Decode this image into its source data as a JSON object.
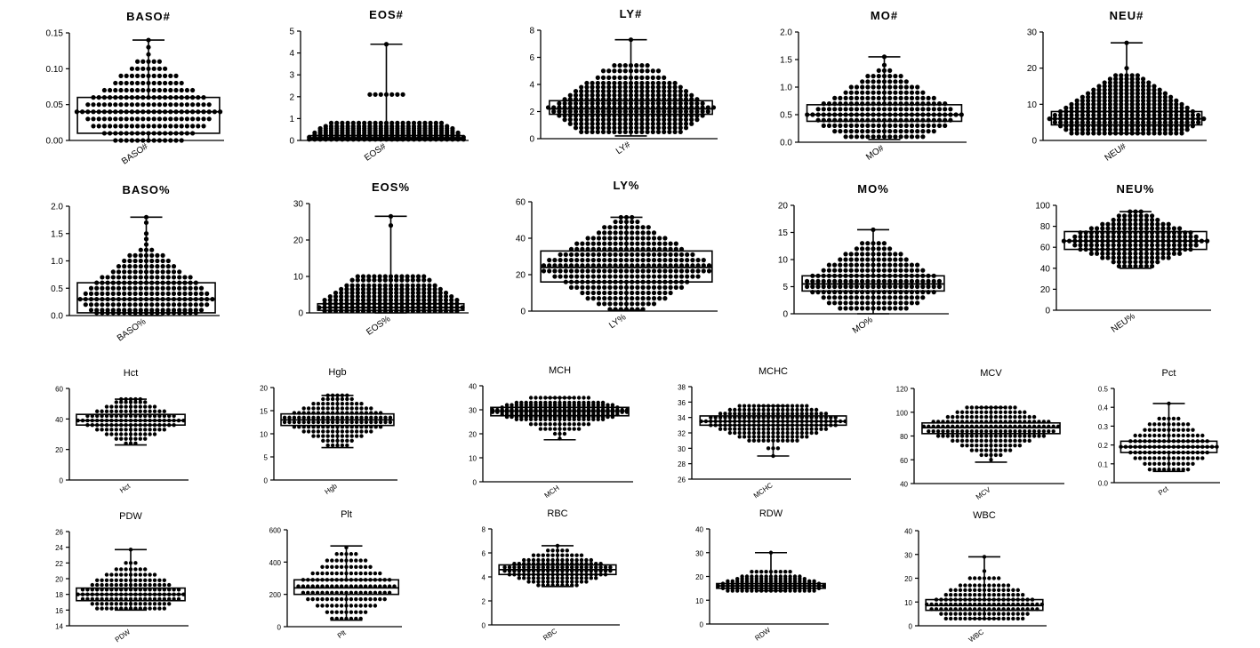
{
  "chart_data": [
    {
      "type": "box_dot",
      "title": "BASO#",
      "category": "BASO#",
      "ylim": [
        0,
        0.15
      ],
      "yticks": [
        "0.00",
        "0.05",
        "0.10",
        "0.15"
      ],
      "yticks_v": [
        0,
        0.05,
        0.1,
        0.15
      ],
      "min": 0,
      "q1": 0.01,
      "median": 0.04,
      "q3": 0.06,
      "max": 0.14,
      "levels": [
        0,
        0.01,
        0.02,
        0.03,
        0.04,
        0.05,
        0.06,
        0.07,
        0.08,
        0.09,
        0.1,
        0.11,
        0.12,
        0.13,
        0.14
      ]
    },
    {
      "type": "box_dot",
      "title": "EOS#",
      "category": "EOS#",
      "ylim": [
        0,
        5
      ],
      "yticks": [
        "0",
        "1",
        "2",
        "3",
        "4",
        "5"
      ],
      "yticks_v": [
        0,
        1,
        2,
        3,
        4,
        5
      ],
      "min": 0,
      "q1": 0.05,
      "median": 0.12,
      "q3": 0.22,
      "max": 4.4,
      "levels": [
        0.05,
        0.15,
        0.25,
        0.35,
        0.45,
        0.55,
        0.65,
        0.8,
        2.1,
        4.4
      ]
    },
    {
      "type": "box_dot",
      "title": "LY#",
      "category": "LY#",
      "ylim": [
        0,
        8
      ],
      "yticks": [
        "0",
        "2",
        "4",
        "6",
        "8"
      ],
      "yticks_v": [
        0,
        2,
        4,
        6,
        8
      ],
      "min": 0.2,
      "q1": 1.8,
      "median": 2.2,
      "q3": 2.8,
      "max": 7.3,
      "levels": [
        0.5,
        0.8,
        1.1,
        1.4,
        1.7,
        2.0,
        2.3,
        2.6,
        2.9,
        3.2,
        3.5,
        3.8,
        4.1,
        4.5,
        5.0,
        5.4,
        7.3
      ]
    },
    {
      "type": "box_dot",
      "title": "MO#",
      "category": "MO#",
      "ylim": [
        0,
        2.0
      ],
      "yticks": [
        "0.0",
        "0.5",
        "1.0",
        "1.5",
        "2.0"
      ],
      "yticks_v": [
        0,
        0.5,
        1.0,
        1.5,
        2.0
      ],
      "min": 0.05,
      "q1": 0.38,
      "median": 0.5,
      "q3": 0.68,
      "max": 1.55,
      "levels": [
        0.1,
        0.2,
        0.3,
        0.4,
        0.5,
        0.6,
        0.7,
        0.8,
        0.9,
        1.0,
        1.1,
        1.2,
        1.3,
        1.4,
        1.55
      ]
    },
    {
      "type": "box_dot",
      "title": "NEU#",
      "category": "NEU#",
      "ylim": [
        0,
        30
      ],
      "yticks": [
        "0",
        "10",
        "20",
        "30"
      ],
      "yticks_v": [
        0,
        10,
        20,
        30
      ],
      "min": 2,
      "q1": 4.3,
      "median": 6.0,
      "q3": 8.0,
      "max": 27,
      "levels": [
        2,
        3,
        4,
        5,
        6,
        7,
        8,
        9,
        10,
        11,
        12,
        13,
        14,
        15,
        16,
        17,
        18,
        20,
        27
      ]
    },
    {
      "type": "box_dot",
      "title": "BASO%",
      "category": "BASO%",
      "ylim": [
        0,
        2.0
      ],
      "yticks": [
        "0.0",
        "0.5",
        "1.0",
        "1.5",
        "2.0"
      ],
      "yticks_v": [
        0,
        0.5,
        1.0,
        1.5,
        2.0
      ],
      "min": 0,
      "q1": 0.05,
      "median": 0.3,
      "q3": 0.6,
      "max": 1.8,
      "levels": [
        0.05,
        0.1,
        0.2,
        0.3,
        0.4,
        0.5,
        0.6,
        0.7,
        0.8,
        0.9,
        1.0,
        1.1,
        1.2,
        1.3,
        1.4,
        1.5,
        1.7,
        1.8
      ]
    },
    {
      "type": "box_dot",
      "title": "EOS%",
      "category": "EOS%",
      "ylim": [
        0,
        30
      ],
      "yticks": [
        "0",
        "10",
        "20",
        "30"
      ],
      "yticks_v": [
        0,
        10,
        20,
        30
      ],
      "min": 0,
      "q1": 0.7,
      "median": 1.5,
      "q3": 2.5,
      "max": 26.5,
      "levels": [
        0.5,
        1.5,
        2.5,
        3.5,
        4.5,
        5.5,
        6.5,
        7.5,
        9,
        10,
        24,
        26.5
      ]
    },
    {
      "type": "box_dot",
      "title": "LY%",
      "category": "LY%",
      "ylim": [
        0,
        60
      ],
      "yticks": [
        "0",
        "20",
        "40",
        "60"
      ],
      "yticks_v": [
        0,
        20,
        40,
        60
      ],
      "min": 0.5,
      "q1": 16,
      "median": 24,
      "q3": 33,
      "max": 51.5,
      "levels": [
        1,
        4,
        7,
        10,
        13,
        16,
        19,
        22,
        25,
        28,
        31,
        34,
        37,
        40,
        43,
        46,
        49,
        51.5
      ]
    },
    {
      "type": "box_dot",
      "title": "MO%",
      "category": "MO%",
      "ylim": [
        0,
        20
      ],
      "yticks": [
        "0",
        "5",
        "10",
        "15",
        "20"
      ],
      "yticks_v": [
        0,
        5,
        10,
        15,
        20
      ],
      "min": 0,
      "q1": 4.2,
      "median": 5.5,
      "q3": 7.0,
      "max": 15.5,
      "levels": [
        1,
        2,
        3,
        4,
        5,
        6,
        7,
        8,
        9,
        10,
        11,
        12,
        13,
        15.5
      ]
    },
    {
      "type": "box_dot",
      "title": "NEU%",
      "category": "NEU%",
      "ylim": [
        0,
        100
      ],
      "yticks": [
        "0",
        "20",
        "40",
        "60",
        "80",
        "100"
      ],
      "yticks_v": [
        0,
        20,
        40,
        60,
        80,
        100
      ],
      "min": 40,
      "q1": 58,
      "median": 66,
      "q3": 75,
      "max": 94,
      "levels": [
        42,
        46,
        50,
        54,
        58,
        62,
        66,
        70,
        74,
        78,
        82,
        86,
        90,
        94
      ]
    },
    {
      "type": "box_dot",
      "title": "Hct",
      "category": "Hct",
      "ylim": [
        0,
        60
      ],
      "yticks": [
        "0",
        "20",
        "40",
        "60"
      ],
      "yticks_v": [
        0,
        20,
        40,
        60
      ],
      "min": 23,
      "q1": 36,
      "median": 39,
      "q3": 43,
      "max": 53,
      "levels": [
        24,
        27,
        30,
        33,
        36,
        39,
        42,
        45,
        48,
        51,
        53
      ]
    },
    {
      "type": "box_dot",
      "title": "Hgb",
      "category": "Hgb",
      "ylim": [
        0,
        20
      ],
      "yticks": [
        "0",
        "5",
        "10",
        "15",
        "20"
      ],
      "yticks_v": [
        0,
        5,
        10,
        15,
        20
      ],
      "min": 7,
      "q1": 11.8,
      "median": 13,
      "q3": 14.3,
      "max": 18.3,
      "levels": [
        7.5,
        8.5,
        9.5,
        10.5,
        11.5,
        12.5,
        13.5,
        14.5,
        15.5,
        16.5,
        17.5,
        18.3
      ]
    },
    {
      "type": "box_dot",
      "title": "MCH",
      "category": "MCH",
      "ylim": [
        0,
        40
      ],
      "yticks": [
        "0",
        "10",
        "20",
        "30",
        "40"
      ],
      "yticks_v": [
        0,
        10,
        20,
        30,
        40
      ],
      "min": 17.5,
      "q1": 27.5,
      "median": 29.5,
      "q3": 31,
      "max": 35,
      "levels": [
        18,
        20,
        22,
        24,
        26,
        27,
        28,
        29,
        30,
        31,
        32,
        33,
        35
      ]
    },
    {
      "type": "box_dot",
      "title": "MCHC",
      "category": "MCHC",
      "ylim": [
        26,
        38
      ],
      "yticks": [
        "26",
        "28",
        "30",
        "32",
        "34",
        "36",
        "38"
      ],
      "yticks_v": [
        26,
        28,
        30,
        32,
        34,
        36,
        38
      ],
      "min": 29,
      "q1": 33,
      "median": 33.5,
      "q3": 34.2,
      "max": 35.5,
      "levels": [
        29,
        30,
        31,
        31.5,
        32,
        32.5,
        33,
        33.5,
        34,
        34.5,
        35,
        35.5
      ]
    },
    {
      "type": "box_dot",
      "title": "MCV",
      "category": "MCV",
      "ylim": [
        40,
        120
      ],
      "yticks": [
        "40",
        "60",
        "80",
        "100",
        "120"
      ],
      "yticks_v": [
        40,
        60,
        80,
        100,
        120
      ],
      "min": 58,
      "q1": 82,
      "median": 87,
      "q3": 91,
      "max": 104,
      "levels": [
        60,
        64,
        68,
        72,
        76,
        80,
        84,
        88,
        92,
        96,
        100,
        104
      ]
    },
    {
      "type": "box_dot",
      "title": "Pct",
      "category": "Pct",
      "ylim": [
        0,
        0.5
      ],
      "yticks": [
        "0.0",
        "0.1",
        "0.2",
        "0.3",
        "0.4",
        "0.5"
      ],
      "yticks_v": [
        0,
        0.1,
        0.2,
        0.3,
        0.4,
        0.5
      ],
      "min": 0.06,
      "q1": 0.16,
      "median": 0.19,
      "q3": 0.22,
      "max": 0.42,
      "levels": [
        0.07,
        0.1,
        0.13,
        0.16,
        0.19,
        0.22,
        0.25,
        0.28,
        0.31,
        0.34,
        0.42
      ]
    },
    {
      "type": "box_dot",
      "title": "PDW",
      "category": "PDW",
      "ylim": [
        14,
        26
      ],
      "yticks": [
        "14",
        "16",
        "18",
        "20",
        "22",
        "24",
        "26"
      ],
      "yticks_v": [
        14,
        16,
        18,
        20,
        22,
        24,
        26
      ],
      "min": 16,
      "q1": 17.2,
      "median": 18,
      "q3": 18.8,
      "max": 23.7,
      "levels": [
        16.2,
        16.8,
        17.4,
        18,
        18.6,
        19.2,
        19.8,
        20.5,
        21.2,
        22,
        23.7
      ]
    },
    {
      "type": "box_dot",
      "title": "Plt",
      "category": "Plt",
      "ylim": [
        0,
        600
      ],
      "yticks": [
        "0",
        "200",
        "400",
        "600"
      ],
      "yticks_v": [
        0,
        200,
        400,
        600
      ],
      "min": 40,
      "q1": 200,
      "median": 240,
      "q3": 290,
      "max": 500,
      "levels": [
        50,
        90,
        130,
        170,
        210,
        250,
        290,
        330,
        370,
        410,
        450,
        490
      ]
    },
    {
      "type": "box_dot",
      "title": "RBC",
      "category": "RBC",
      "ylim": [
        0,
        8
      ],
      "yticks": [
        "0",
        "2",
        "4",
        "6",
        "8"
      ],
      "yticks_v": [
        0,
        2,
        4,
        6,
        8
      ],
      "min": 3.2,
      "q1": 4.2,
      "median": 4.6,
      "q3": 5.0,
      "max": 6.6,
      "levels": [
        3.3,
        3.6,
        3.9,
        4.2,
        4.5,
        4.8,
        5.1,
        5.4,
        5.8,
        6.2,
        6.6
      ]
    },
    {
      "type": "box_dot",
      "title": "RDW",
      "category": "RDW",
      "ylim": [
        0,
        40
      ],
      "yticks": [
        "0",
        "10",
        "20",
        "30",
        "40"
      ],
      "yticks_v": [
        0,
        10,
        20,
        30,
        40
      ],
      "min": 14,
      "q1": 15,
      "median": 16,
      "q3": 17,
      "max": 30,
      "levels": [
        14,
        15,
        16,
        17,
        18,
        19,
        20,
        22,
        30
      ]
    },
    {
      "type": "box_dot",
      "title": "WBC",
      "category": "WBC",
      "ylim": [
        0,
        40
      ],
      "yticks": [
        "0",
        "10",
        "20",
        "30",
        "40"
      ],
      "yticks_v": [
        0,
        10,
        20,
        30,
        40
      ],
      "min": 3,
      "q1": 6.5,
      "median": 8.5,
      "q3": 11,
      "max": 29,
      "levels": [
        3,
        5,
        7,
        9,
        11,
        13,
        15,
        17,
        20,
        23,
        29
      ]
    }
  ]
}
